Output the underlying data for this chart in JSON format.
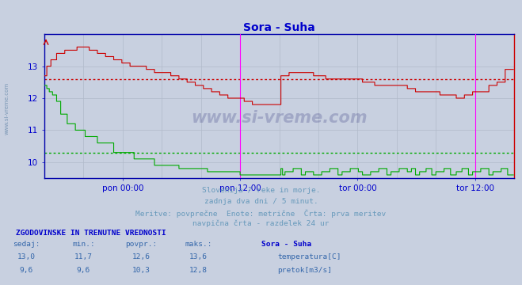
{
  "title": "Sora - Suha",
  "title_color": "#0000cc",
  "bg_color": "#c8d0e0",
  "plot_bg_color": "#c8d0e0",
  "grid_color": "#b0baca",
  "axis_color": "#0000cc",
  "text_color": "#0000aa",
  "temp_avg": 12.6,
  "flow_avg": 10.3,
  "temp_color": "#cc0000",
  "flow_color": "#00aa00",
  "avg_temp_color": "#cc0000",
  "avg_flow_color": "#00aa00",
  "vline_color": "#ff00ff",
  "footer_lines": [
    "Slovenija / reke in morje.",
    "zadnja dva dni / 5 minut.",
    "Meritve: povprečne  Enote: metrične  Črta: prva meritev",
    "navpična črta - razdelek 24 ur"
  ],
  "table_title": "ZGODOVINSKE IN TRENUTNE VREDNOSTI",
  "table_headers": [
    "sedaj:",
    "min.:",
    "povpr.:",
    "maks.:",
    "Sora - Suha"
  ],
  "table_row1": [
    "13,0",
    "11,7",
    "12,6",
    "13,6"
  ],
  "table_row2": [
    "9,6",
    "9,6",
    "10,3",
    "12,8"
  ],
  "legend_labels": [
    "temperatura[C]",
    "pretok[m3/s]"
  ],
  "n_points": 576,
  "watermark": "www.si-vreme.com",
  "ylim_min": 9.5,
  "ylim_max": 14.0
}
